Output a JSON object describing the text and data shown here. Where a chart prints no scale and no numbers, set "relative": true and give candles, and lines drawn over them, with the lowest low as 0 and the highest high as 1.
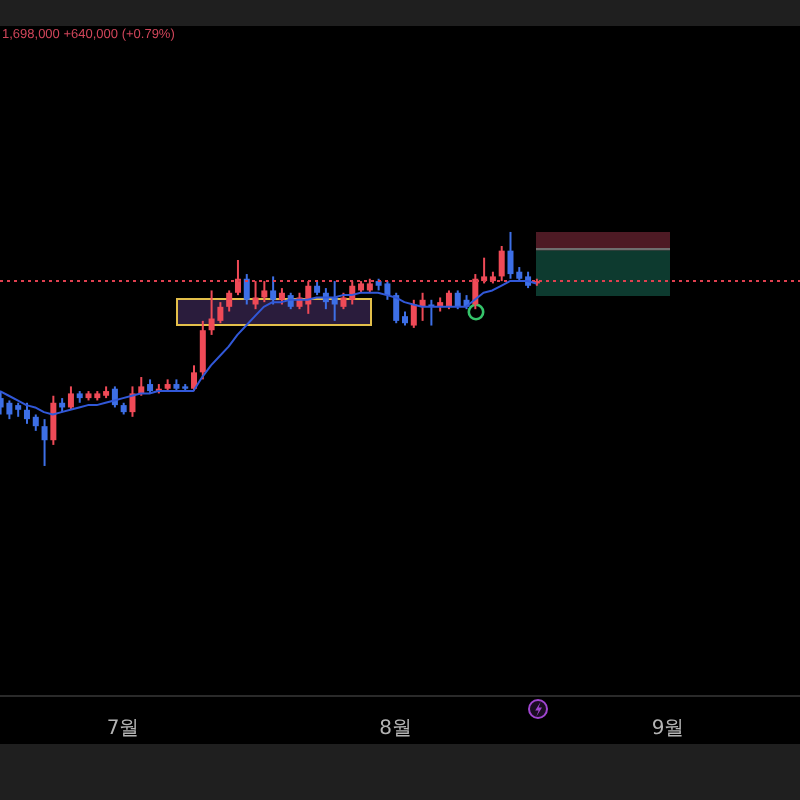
{
  "chart_data": {
    "type": "candlestick",
    "relative": true,
    "annotations": [
      "1,698,000 +640,000 (+0.79%)"
    ],
    "x": [
      "--06-17",
      "--06-18",
      "--06-19",
      "--06-20",
      "--06-21",
      "--06-22",
      "--06-23",
      "--06-24",
      "--06-25",
      "--06-26",
      "--06-27",
      "--06-28",
      "--06-29",
      "--06-30",
      "--07-01",
      "--07-02",
      "--07-03",
      "--07-04",
      "--07-05",
      "--07-06",
      "--07-07",
      "--07-08",
      "--07-09",
      "--07-10",
      "--07-11",
      "--07-12",
      "--07-13",
      "--07-14",
      "--07-15",
      "--07-16",
      "--07-17",
      "--07-18",
      "--07-19",
      "--07-20",
      "--07-21",
      "--07-22",
      "--07-23",
      "--07-24",
      "--07-25",
      "--07-26",
      "--07-27",
      "--07-28",
      "--07-29",
      "--07-30",
      "--07-31",
      "--08-01",
      "--08-02",
      "--08-03",
      "--08-04",
      "--08-05",
      "--08-06",
      "--08-07",
      "--08-08",
      "--08-09",
      "--08-10",
      "--08-11",
      "--08-12",
      "--08-13",
      "--08-14",
      "--08-15",
      "--08-16",
      "--08-17"
    ],
    "ohlc": [
      [
        0.29,
        0.32,
        0.22,
        0.25
      ],
      [
        0.27,
        0.28,
        0.2,
        0.22
      ],
      [
        0.26,
        0.27,
        0.21,
        0.24
      ],
      [
        0.24,
        0.27,
        0.18,
        0.2
      ],
      [
        0.21,
        0.22,
        0.15,
        0.17
      ],
      [
        0.17,
        0.2,
        0,
        0.11
      ],
      [
        0.11,
        0.3,
        0.09,
        0.27
      ],
      [
        0.27,
        0.29,
        0.23,
        0.25
      ],
      [
        0.25,
        0.34,
        0.24,
        0.31
      ],
      [
        0.31,
        0.32,
        0.27,
        0.29
      ],
      [
        0.29,
        0.32,
        0.28,
        0.31
      ],
      [
        0.29,
        0.32,
        0.28,
        0.31
      ],
      [
        0.3,
        0.34,
        0.29,
        0.32
      ],
      [
        0.33,
        0.34,
        0.25,
        0.26
      ],
      [
        0.26,
        0.27,
        0.22,
        0.23
      ],
      [
        0.23,
        0.34,
        0.21,
        0.31
      ],
      [
        0.31,
        0.38,
        0.3,
        0.34
      ],
      [
        0.35,
        0.37,
        0.31,
        0.32
      ],
      [
        0.32,
        0.35,
        0.31,
        0.33
      ],
      [
        0.33,
        0.37,
        0.32,
        0.35
      ],
      [
        0.35,
        0.37,
        0.32,
        0.33
      ],
      [
        0.34,
        0.35,
        0.32,
        0.33
      ],
      [
        0.33,
        0.43,
        0.32,
        0.4
      ],
      [
        0.4,
        0.62,
        0.37,
        0.58
      ],
      [
        0.58,
        0.75,
        0.56,
        0.63
      ],
      [
        0.62,
        0.7,
        0.61,
        0.68
      ],
      [
        0.68,
        0.75,
        0.66,
        0.74
      ],
      [
        0.74,
        0.88,
        0.73,
        0.8
      ],
      [
        0.8,
        0.82,
        0.69,
        0.71
      ],
      [
        0.69,
        0.79,
        0.67,
        0.72
      ],
      [
        0.72,
        0.79,
        0.7,
        0.75
      ],
      [
        0.75,
        0.81,
        0.69,
        0.71
      ],
      [
        0.71,
        0.76,
        0.69,
        0.74
      ],
      [
        0.73,
        0.74,
        0.67,
        0.68
      ],
      [
        0.68,
        0.74,
        0.67,
        0.72
      ],
      [
        0.69,
        0.79,
        0.65,
        0.77
      ],
      [
        0.77,
        0.79,
        0.73,
        0.74
      ],
      [
        0.74,
        0.76,
        0.67,
        0.7
      ],
      [
        0.72,
        0.79,
        0.62,
        0.69
      ],
      [
        0.68,
        0.74,
        0.67,
        0.72
      ],
      [
        0.71,
        0.79,
        0.69,
        0.77
      ],
      [
        0.75,
        0.79,
        0.74,
        0.78
      ],
      [
        0.75,
        0.8,
        0.74,
        0.78
      ],
      [
        0.79,
        0.8,
        0.75,
        0.77
      ],
      [
        0.78,
        0.79,
        0.71,
        0.73
      ],
      [
        0.73,
        0.74,
        0.61,
        0.62
      ],
      [
        0.64,
        0.66,
        0.6,
        0.61
      ],
      [
        0.6,
        0.71,
        0.59,
        0.69
      ],
      [
        0.68,
        0.74,
        0.62,
        0.71
      ],
      [
        0.69,
        0.71,
        0.6,
        0.68
      ],
      [
        0.68,
        0.72,
        0.66,
        0.7
      ],
      [
        0.68,
        0.75,
        0.67,
        0.74
      ],
      [
        0.74,
        0.75,
        0.67,
        0.68
      ],
      [
        0.71,
        0.73,
        0.67,
        0.68
      ],
      [
        0.69,
        0.82,
        0.67,
        0.8
      ],
      [
        0.79,
        0.89,
        0.78,
        0.81
      ],
      [
        0.79,
        0.83,
        0.78,
        0.81
      ],
      [
        0.81,
        0.94,
        0.79,
        0.92
      ],
      [
        0.92,
        1,
        0.8,
        0.82
      ],
      [
        0.83,
        0.85,
        0.79,
        0.8
      ],
      [
        0.81,
        0.83,
        0.76,
        0.77
      ],
      [
        0.78,
        0.8,
        0.77,
        0.79
      ]
    ],
    "colors": [
      "#3d6fe6",
      "#3d6fe6",
      "#3d6fe6",
      "#3d6fe6",
      "#3d6fe6",
      "#3d6fe6",
      "#ef4a57",
      "#3d6fe6",
      "#ef4a57",
      "#3d6fe6",
      "#ef4a57",
      "#ef4a57",
      "#ef4a57",
      "#3d6fe6",
      "#3d6fe6",
      "#ef4a57",
      "#ef4a57",
      "#3d6fe6",
      "#ef4a57",
      "#ef4a57",
      "#3d6fe6",
      "#3d6fe6",
      "#ef4a57",
      "#ef4a57",
      "#ef4a57",
      "#ef4a57",
      "#ef4a57",
      "#ef4a57",
      "#3d6fe6",
      "#ef4a57",
      "#ef4a57",
      "#3d6fe6",
      "#ef4a57",
      "#3d6fe6",
      "#ef4a57",
      "#ef4a57",
      "#3d6fe6",
      "#3d6fe6",
      "#3d6fe6",
      "#ef4a57",
      "#ef4a57",
      "#ef4a57",
      "#ef4a57",
      "#3d6fe6",
      "#3d6fe6",
      "#3d6fe6",
      "#3d6fe6",
      "#ef4a57",
      "#ef4a57",
      "#3d6fe6",
      "#ef4a57",
      "#ef4a57",
      "#3d6fe6",
      "#3d6fe6",
      "#ef4a57",
      "#ef4a57",
      "#ef4a57",
      "#ef4a57",
      "#3d6fe6",
      "#3d6fe6",
      "#3d6fe6",
      "#ef4a57"
    ],
    "series": [
      {
        "type": "line",
        "color": "#3158d8",
        "values": [
          0.32,
          0.3,
          0.28,
          0.26,
          0.25,
          0.23,
          0.22,
          0.23,
          0.24,
          0.25,
          0.26,
          0.26,
          0.27,
          0.28,
          0.29,
          0.3,
          0.31,
          0.31,
          0.32,
          0.32,
          0.32,
          0.32,
          0.32,
          0.38,
          0.43,
          0.47,
          0.51,
          0.56,
          0.6,
          0.64,
          0.68,
          0.7,
          0.7,
          0.71,
          0.71,
          0.71,
          0.72,
          0.72,
          0.72,
          0.73,
          0.73,
          0.74,
          0.74,
          0.74,
          0.73,
          0.72,
          0.7,
          0.69,
          0.68,
          0.68,
          0.68,
          0.68,
          0.68,
          0.68,
          0.71,
          0.74,
          0.75,
          0.77,
          0.79,
          0.79,
          0.79,
          0.78
        ]
      }
    ],
    "ref_lines": [
      {
        "axis": "y",
        "value": 0.79,
        "color": "#e04050",
        "line_style": "dotted"
      }
    ],
    "xlim": [
      "--06-17",
      "--09-16"
    ],
    "xticks": [
      {
        "value": "--07-01",
        "label": "7월"
      },
      {
        "value": "--08-01",
        "label": "8월"
      },
      {
        "value": "--09-01",
        "label": "9월"
      }
    ]
  }
}
